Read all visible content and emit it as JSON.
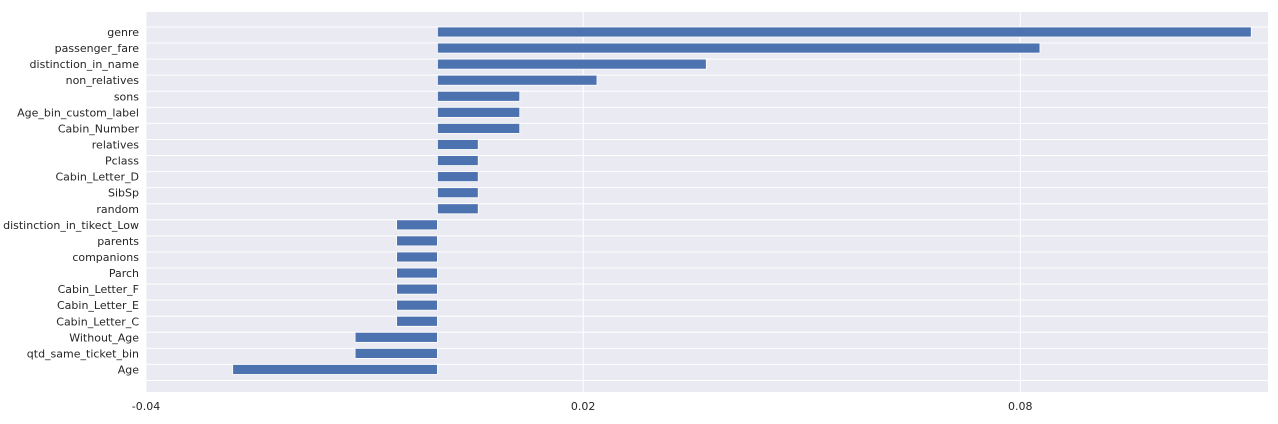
{
  "chart_data": {
    "type": "bar",
    "orientation": "horizontal",
    "title": "",
    "xlabel": "",
    "ylabel": "",
    "xlim": [
      -0.04,
      0.114
    ],
    "xticks": [
      -0.04,
      0.02,
      0.08
    ],
    "xtick_labels": [
      "-0.04",
      "0.02",
      "0.08"
    ],
    "grid": true,
    "colors": {
      "bar": "#4c72b0",
      "background": "#eaeaf2",
      "grid": "#ffffff"
    },
    "categories": [
      "genre",
      "passenger_fare",
      "distinction_in_name",
      "non_relatives",
      "sons",
      "Age_bin_custom_label",
      "Cabin_Number",
      "relatives",
      "Pclass",
      "Cabin_Letter_D",
      "SibSp",
      "random",
      "distinction_in_tikect_Low",
      "parents",
      "companions",
      "Parch",
      "Cabin_Letter_F",
      "Cabin_Letter_E",
      "Cabin_Letter_C",
      "Without_Age",
      "qtd_same_ticket_bin",
      "Age"
    ],
    "values": [
      0.1117,
      0.0827,
      0.0369,
      0.0219,
      0.0113,
      0.0113,
      0.0113,
      0.0056,
      0.0056,
      0.0056,
      0.0056,
      0.0056,
      -0.0056,
      -0.0056,
      -0.0056,
      -0.0056,
      -0.0056,
      -0.0056,
      -0.0056,
      -0.0113,
      -0.0113,
      -0.0281
    ]
  }
}
